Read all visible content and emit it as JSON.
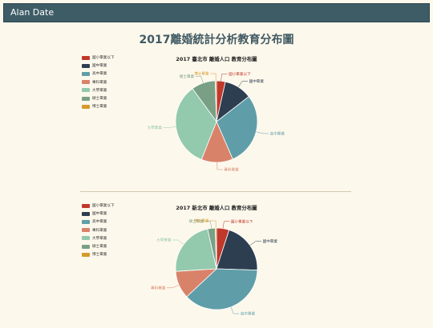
{
  "navbar": {
    "brand": "Alan Date"
  },
  "page": {
    "title": "2017離婚統計分析教育分布圖"
  },
  "legend_colors": [
    "#c0392b",
    "#2c3e50",
    "#5f9ea8",
    "#d9826a",
    "#93c9ad",
    "#79a085",
    "#d69a2c"
  ],
  "chart_data": [
    {
      "type": "pie",
      "title": "2017 臺北市 離婚人口 教育分布圖",
      "legend": [
        "國小畢業以下",
        "國中畢業",
        "高中畢業",
        "專科畢業",
        "大學畢業",
        "碩士畢業",
        "博士畢業"
      ],
      "slices": [
        {
          "label": "國小畢業以下",
          "value": 3.5,
          "color": "#c0392b"
        },
        {
          "label": "國中畢業",
          "value": 11,
          "color": "#2c3e50"
        },
        {
          "label": "高中畢業",
          "value": 29,
          "color": "#5f9ea8"
        },
        {
          "label": "專科畢業",
          "value": 12.5,
          "color": "#d9826a"
        },
        {
          "label": "大學畢業",
          "value": 34,
          "color": "#93c9ad"
        },
        {
          "label": "碩士畢業",
          "value": 9.5,
          "color": "#79a085"
        },
        {
          "label": "博士畢業",
          "value": 0.5,
          "color": "#d69a2c"
        }
      ]
    },
    {
      "type": "pie",
      "title": "2017 新北市 離婚人口 教育分布圖",
      "legend": [
        "國小畢業以下",
        "國中畢業",
        "高中畢業",
        "專科畢業",
        "大學畢業",
        "碩士畢業",
        "博士畢業"
      ],
      "slices": [
        {
          "label": "國小畢業以下",
          "value": 5,
          "color": "#c0392b"
        },
        {
          "label": "國中畢業",
          "value": 20.5,
          "color": "#2c3e50"
        },
        {
          "label": "高中畢業",
          "value": 37.5,
          "color": "#5f9ea8"
        },
        {
          "label": "專科畢業",
          "value": 11,
          "color": "#d9826a"
        },
        {
          "label": "大學畢業",
          "value": 22.5,
          "color": "#93c9ad"
        },
        {
          "label": "碩士畢業",
          "value": 3,
          "color": "#79a085"
        },
        {
          "label": "博士畢業",
          "value": 0.5,
          "color": "#d69a2c"
        }
      ]
    }
  ]
}
